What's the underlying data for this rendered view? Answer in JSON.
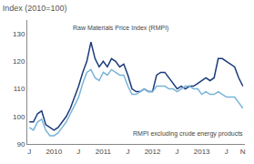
{
  "chart_data": {
    "type": "line",
    "title": "Index (2010=100)",
    "categories": [
      "J",
      null,
      null,
      null,
      null,
      null,
      "2010",
      null,
      null,
      null,
      null,
      null,
      "J",
      null,
      null,
      null,
      null,
      null,
      "2011",
      null,
      null,
      null,
      null,
      null,
      "J",
      null,
      null,
      null,
      null,
      null,
      "2012",
      null,
      null,
      null,
      null,
      null,
      "J",
      null,
      null,
      null,
      null,
      null,
      "2013",
      null,
      null,
      null,
      null,
      null,
      "J",
      null,
      null,
      null,
      "N"
    ],
    "series": [
      {
        "name": "Raw Materials Price Index (RMPI)",
        "color": "#1a3a7a",
        "values": [
          98,
          98,
          101,
          102,
          97,
          96,
          95,
          96,
          98,
          100,
          103,
          107,
          111,
          116,
          120,
          127,
          121,
          118,
          120,
          118,
          121,
          120,
          118,
          119,
          115,
          110,
          109,
          109,
          110,
          109,
          109,
          115,
          116,
          116,
          114,
          112,
          110,
          111,
          110,
          111,
          111,
          112,
          113,
          114,
          113,
          114,
          121,
          121,
          120,
          119,
          118,
          114,
          111
        ]
      },
      {
        "name": "RMPI excluding crude energy products",
        "color": "#7ab4d8",
        "values": [
          96,
          95,
          98,
          99,
          95,
          93,
          93,
          94,
          96,
          98,
          101,
          104,
          107,
          112,
          116,
          117,
          114,
          113,
          116,
          115,
          117,
          116,
          115,
          115,
          111,
          108,
          108,
          109,
          110,
          109,
          109,
          111,
          111,
          111,
          110,
          110,
          109,
          110,
          111,
          111,
          110,
          110,
          108,
          109,
          108,
          108,
          109,
          108,
          107,
          107,
          107,
          105,
          103
        ]
      }
    ],
    "ylim": [
      90,
      135
    ],
    "yticks": [
      90,
      100,
      110,
      120,
      130
    ],
    "grid": false
  }
}
